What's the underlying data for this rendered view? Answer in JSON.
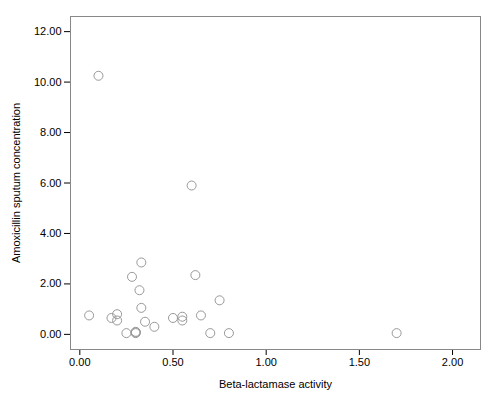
{
  "chart_data": {
    "type": "scatter",
    "x": [
      0.05,
      0.1,
      0.17,
      0.2,
      0.2,
      0.25,
      0.28,
      0.3,
      0.3,
      0.3,
      0.32,
      0.33,
      0.33,
      0.35,
      0.4,
      0.5,
      0.55,
      0.55,
      0.6,
      0.62,
      0.65,
      0.7,
      0.75,
      0.8,
      1.7
    ],
    "values": [
      0.75,
      10.25,
      0.65,
      0.8,
      0.55,
      0.05,
      2.28,
      0.05,
      0.08,
      0.1,
      1.75,
      2.85,
      1.05,
      0.5,
      0.3,
      0.65,
      0.7,
      0.55,
      5.9,
      2.35,
      0.75,
      0.05,
      1.35,
      0.05,
      0.05
    ],
    "xlabel": "Beta-lactamase activity",
    "ylabel": "Amoxicillin sputum concentration",
    "xlim": [
      -0.05,
      2.15
    ],
    "ylim": [
      -0.6,
      12.6
    ],
    "xticks": [
      {
        "value": 0,
        "label": "0.00"
      },
      {
        "value": 0.5,
        "label": "0.50"
      },
      {
        "value": 1,
        "label": "1.00"
      },
      {
        "value": 1.5,
        "label": "1.50"
      },
      {
        "value": 2,
        "label": "2.00"
      }
    ],
    "yticks": [
      {
        "value": 0,
        "label": "0.00"
      },
      {
        "value": 2,
        "label": "2.00"
      },
      {
        "value": 4,
        "label": "4.00"
      },
      {
        "value": 6,
        "label": "6.00"
      },
      {
        "value": 8,
        "label": "8.00"
      },
      {
        "value": 10,
        "label": "10.00"
      },
      {
        "value": 12,
        "label": "12.00"
      }
    ],
    "color": "#999999",
    "marker": "circle",
    "grid": false
  }
}
